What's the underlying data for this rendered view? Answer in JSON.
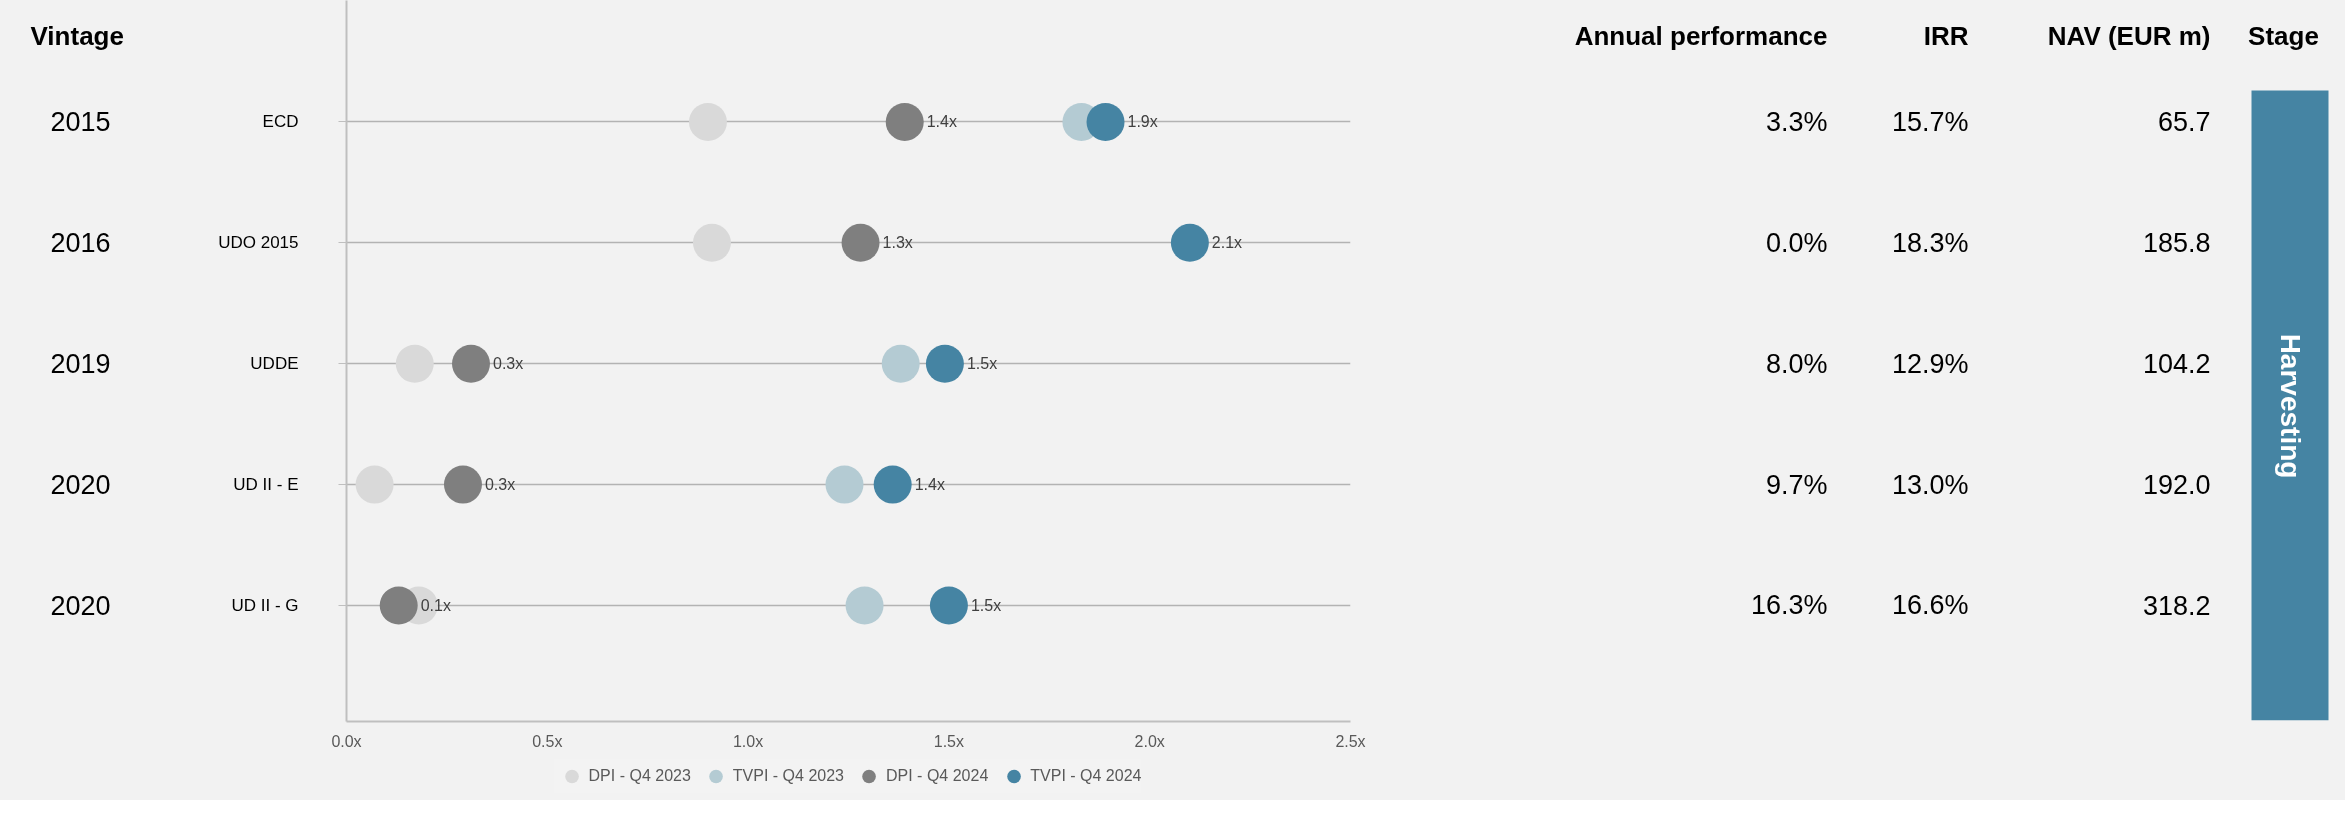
{
  "chart_data": [
    {
      "type": "other",
      "title": "Vintage",
      "annotations": [
        "2015",
        "2016",
        "2019",
        "2020",
        "2020"
      ]
    },
    {
      "type": "scatter",
      "orientation": "horizontal",
      "categories": [
        "ECD",
        "UDO 2015",
        "UDDE",
        "UD II - E",
        "UD II - G"
      ],
      "series": [
        {
          "name": "DPI - Q4 2023",
          "color": "#d9d9d9",
          "values": [
            0.9,
            0.91,
            0.17,
            0.07,
            0.18
          ]
        },
        {
          "name": "TVPI - Q4 2023",
          "color": "#b4cbd3",
          "values": [
            1.83,
            null,
            1.38,
            1.24,
            1.29
          ]
        },
        {
          "name": "DPI - Q4 2024",
          "color": "#7f7f7f",
          "values": [
            1.39,
            1.28,
            0.31,
            0.29,
            0.13
          ],
          "value_labels": [
            "1.4x",
            "1.3x",
            "0.3x",
            "0.3x",
            "0.1x"
          ]
        },
        {
          "name": "TVPI - Q4 2024",
          "color": "#4584a3",
          "values": [
            1.89,
            2.1,
            1.49,
            1.36,
            1.5
          ],
          "value_labels": [
            "1.9x",
            "2.1x",
            "1.5x",
            "1.4x",
            "1.5x"
          ]
        }
      ],
      "xlim": [
        0,
        2.5
      ],
      "xticks": [
        {
          "value": 0,
          "label": "0.0x"
        },
        {
          "value": 0.5,
          "label": "0.5x"
        },
        {
          "value": 1,
          "label": "1.0x"
        },
        {
          "value": 1.5,
          "label": "1.5x"
        },
        {
          "value": 2,
          "label": "2.0x"
        },
        {
          "value": 2.5,
          "label": "2.5x"
        }
      ],
      "grid": "y",
      "legend": "bottom",
      "marker": "circle"
    },
    {
      "type": "other",
      "categories": [
        "Annual performance",
        "IRR",
        "NAV (EUR m)",
        "Stage"
      ],
      "annotations": [
        "3.3%",
        "15.7%",
        "65.7",
        "0.0%",
        "18.3%",
        "185.8",
        "8.0%",
        "12.9%",
        "104.2",
        "9.7%",
        "13.0%",
        "192.0",
        "16.3%",
        "16.6%",
        "318.2",
        "Harvesting"
      ]
    }
  ]
}
